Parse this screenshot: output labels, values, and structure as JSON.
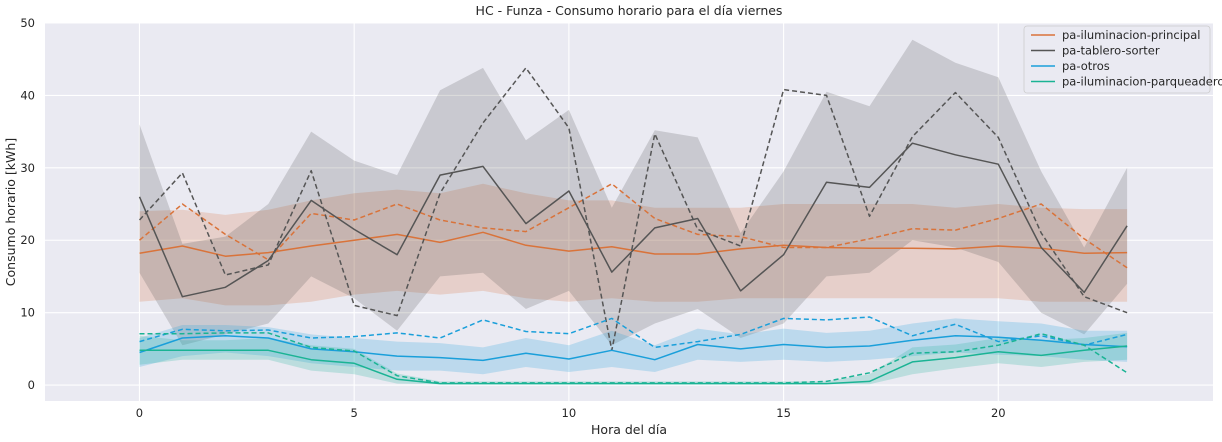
{
  "chart_data": {
    "type": "line",
    "title": "HC - Funza - Consumo horario para el día viernes",
    "xlabel": "Hora del día",
    "ylabel": "Consumo horario [kWh]",
    "xlim": [
      -2.2,
      25
    ],
    "ylim": [
      -2.2,
      50
    ],
    "xticks": [
      0,
      5,
      10,
      15,
      20
    ],
    "yticks": [
      0,
      10,
      20,
      30,
      40,
      50
    ],
    "grid": true,
    "legend_position": "top-right",
    "x": [
      0,
      1,
      2,
      3,
      4,
      5,
      6,
      7,
      8,
      9,
      10,
      11,
      12,
      13,
      14,
      15,
      16,
      17,
      18,
      19,
      20,
      21,
      22,
      23
    ],
    "series": [
      {
        "name": "pa-iluminacion-principal",
        "color": "#d9733a",
        "mean": [
          18.2,
          19.2,
          17.8,
          18.3,
          19.2,
          20.0,
          20.8,
          19.7,
          21.1,
          19.3,
          18.5,
          19.1,
          18.1,
          18.1,
          18.8,
          19.3,
          19.0,
          18.9,
          18.9,
          18.8,
          19.2,
          18.9,
          18.2,
          18.3
        ],
        "ci_low": [
          11.5,
          12.0,
          11.0,
          11.0,
          11.5,
          12.5,
          13.0,
          12.5,
          13.0,
          12.0,
          11.5,
          12.0,
          11.5,
          11.5,
          12.0,
          12.0,
          12.0,
          12.0,
          12.0,
          12.0,
          12.0,
          11.5,
          11.5,
          11.5
        ],
        "ci_high": [
          24.0,
          24.2,
          23.5,
          24.2,
          25.5,
          26.5,
          27.0,
          26.5,
          27.8,
          26.5,
          25.5,
          25.5,
          24.5,
          24.5,
          24.5,
          25.0,
          25.0,
          25.0,
          25.0,
          24.5,
          25.0,
          24.5,
          24.3,
          24.3
        ],
        "dashed": [
          20.0,
          25.0,
          20.8,
          17.3,
          23.7,
          22.8,
          25.0,
          22.8,
          21.7,
          21.2,
          24.5,
          27.8,
          23.0,
          20.8,
          20.5,
          19.0,
          19.0,
          20.2,
          21.6,
          21.4,
          23.0,
          25.0,
          20.2,
          16.2
        ]
      },
      {
        "name": "pa-tablero-sorter",
        "color": "#555555",
        "mean": [
          26.0,
          12.2,
          13.5,
          17.2,
          25.5,
          21.5,
          18.0,
          29.0,
          30.2,
          22.3,
          26.8,
          15.6,
          21.7,
          23.0,
          13.0,
          18.0,
          28.0,
          27.3,
          33.4,
          31.8,
          30.5,
          19.0,
          12.8,
          22.0
        ],
        "ci_low": [
          15.5,
          5.5,
          7.0,
          8.5,
          15.0,
          12.0,
          7.5,
          15.0,
          15.5,
          10.5,
          13.0,
          5.5,
          8.5,
          10.5,
          6.5,
          8.5,
          15.0,
          15.5,
          20.0,
          19.0,
          17.0,
          10.0,
          7.0,
          14.0
        ],
        "ci_high": [
          36.0,
          19.5,
          20.5,
          25.0,
          35.0,
          31.0,
          29.0,
          40.7,
          43.8,
          33.8,
          38.0,
          24.5,
          35.2,
          34.2,
          21.0,
          29.5,
          40.5,
          38.5,
          47.7,
          44.5,
          42.5,
          29.5,
          19.0,
          30.0
        ],
        "dashed": [
          22.8,
          29.3,
          15.2,
          16.6,
          29.6,
          11.0,
          9.6,
          26.5,
          36.2,
          43.8,
          35.5,
          4.8,
          34.7,
          21.5,
          19.2,
          40.8,
          40.0,
          23.3,
          34.3,
          40.4,
          34.2,
          21.0,
          12.2,
          10.0
        ]
      },
      {
        "name": "pa-otros",
        "color": "#1a9fda",
        "mean": [
          4.5,
          6.5,
          6.8,
          6.5,
          5.0,
          4.6,
          4.0,
          3.8,
          3.4,
          4.4,
          3.6,
          4.8,
          3.5,
          5.6,
          5.0,
          5.6,
          5.2,
          5.4,
          6.2,
          6.8,
          6.6,
          6.2,
          5.6,
          5.3
        ],
        "ci_low": [
          2.5,
          4.0,
          4.5,
          4.0,
          3.0,
          2.5,
          2.0,
          2.0,
          1.5,
          2.5,
          1.8,
          2.5,
          1.8,
          3.5,
          3.2,
          3.5,
          3.2,
          3.5,
          4.0,
          4.5,
          4.2,
          4.0,
          3.5,
          3.2
        ],
        "ci_high": [
          6.5,
          8.3,
          8.3,
          8.0,
          7.0,
          6.5,
          6.0,
          5.8,
          5.2,
          6.5,
          5.5,
          7.5,
          5.5,
          7.8,
          7.0,
          7.8,
          7.2,
          7.5,
          8.5,
          9.2,
          8.8,
          8.5,
          7.5,
          7.5
        ],
        "dashed": [
          6.0,
          7.7,
          7.5,
          7.6,
          6.5,
          6.7,
          7.2,
          6.5,
          9.0,
          7.4,
          7.1,
          9.2,
          5.2,
          6.0,
          7.0,
          9.2,
          9.0,
          9.4,
          6.8,
          8.4,
          6.0,
          6.8,
          5.5,
          7.0
        ]
      },
      {
        "name": "pa-iluminacion-parqueaderos",
        "color": "#1ab394",
        "mean": [
          4.8,
          4.8,
          4.8,
          4.8,
          3.5,
          3.0,
          0.8,
          0.2,
          0.2,
          0.2,
          0.2,
          0.2,
          0.2,
          0.2,
          0.2,
          0.2,
          0.2,
          0.5,
          3.2,
          3.8,
          4.6,
          4.1,
          4.8,
          5.4
        ],
        "ci_low": [
          2.8,
          3.5,
          3.5,
          3.5,
          2.0,
          1.5,
          0.2,
          0.1,
          0.1,
          0.1,
          0.1,
          0.1,
          0.1,
          0.1,
          0.1,
          0.1,
          0.1,
          0.1,
          1.5,
          2.3,
          3.0,
          2.5,
          3.2,
          3.5
        ],
        "ci_high": [
          6.8,
          6.2,
          6.2,
          6.5,
          5.5,
          5.0,
          1.6,
          0.5,
          0.5,
          0.5,
          0.5,
          0.5,
          0.5,
          0.5,
          0.5,
          0.5,
          0.5,
          1.5,
          5.2,
          5.6,
          6.5,
          6.2,
          6.5,
          7.2
        ],
        "dashed": [
          7.1,
          7.1,
          7.2,
          7.2,
          5.2,
          4.7,
          1.3,
          0.3,
          0.3,
          0.3,
          0.3,
          0.3,
          0.3,
          0.3,
          0.3,
          0.3,
          0.5,
          1.7,
          4.4,
          4.6,
          5.5,
          7.1,
          5.5,
          1.7
        ]
      }
    ]
  }
}
